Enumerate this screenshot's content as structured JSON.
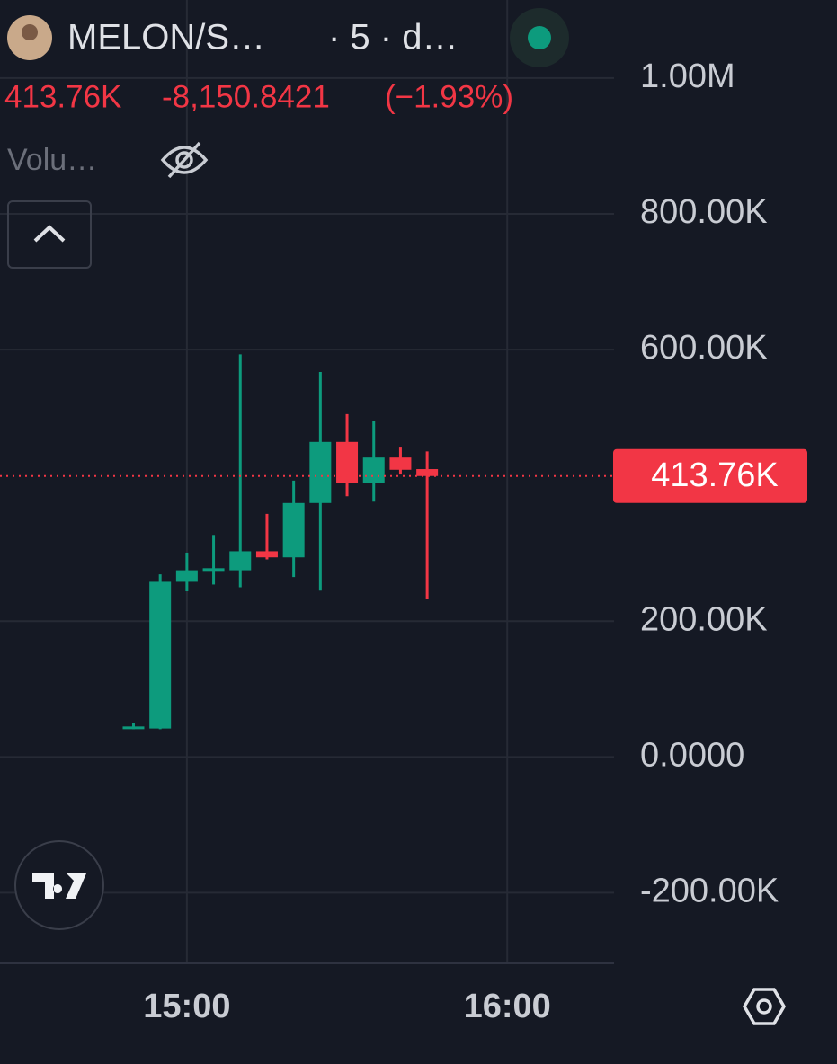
{
  "header": {
    "symbol": "MELON/S…",
    "interval": "· 5 · d…",
    "price": "413.76K",
    "change": "-8,150.8421",
    "change_pct": "(−1.93%)",
    "indicator": "Volu…"
  },
  "chart_data": {
    "type": "candlestick",
    "x": [
      "14:50",
      "14:55",
      "15:00",
      "15:05",
      "15:10",
      "15:15",
      "15:20",
      "15:25",
      "15:30",
      "15:35",
      "15:40",
      "15:45"
    ],
    "open": [
      42000,
      42000,
      258000,
      275000,
      275000,
      303000,
      294000,
      374000,
      464000,
      403000,
      441000,
      424000
    ],
    "high": [
      50000,
      269000,
      301000,
      327000,
      593000,
      358000,
      407000,
      567000,
      505000,
      495000,
      457000,
      450000
    ],
    "low": [
      41000,
      41000,
      244000,
      254000,
      250000,
      291000,
      265000,
      245000,
      384000,
      376000,
      416000,
      233000
    ],
    "close": [
      45000,
      258000,
      275000,
      278000,
      303000,
      294000,
      374000,
      464000,
      403000,
      441000,
      423000,
      413760
    ],
    "up_color": "#0d9b7d",
    "down_color": "#f23645",
    "xlim": [
      "14:25",
      "16:20"
    ],
    "xticks": [
      "15:00",
      "16:00"
    ],
    "ylim": [
      -304000,
      1115000
    ],
    "yticks": [
      {
        "value": -200000,
        "label": "-200.00K"
      },
      {
        "value": 0,
        "label": "0.0000"
      },
      {
        "value": 200000,
        "label": "200.00K"
      },
      {
        "value": 600000,
        "label": "600.00K"
      },
      {
        "value": 800000,
        "label": "800.00K"
      },
      {
        "value": 1000000,
        "label": "1.00M"
      }
    ],
    "last_price": {
      "value": 413760,
      "label": "413.76K"
    },
    "grid": true
  }
}
